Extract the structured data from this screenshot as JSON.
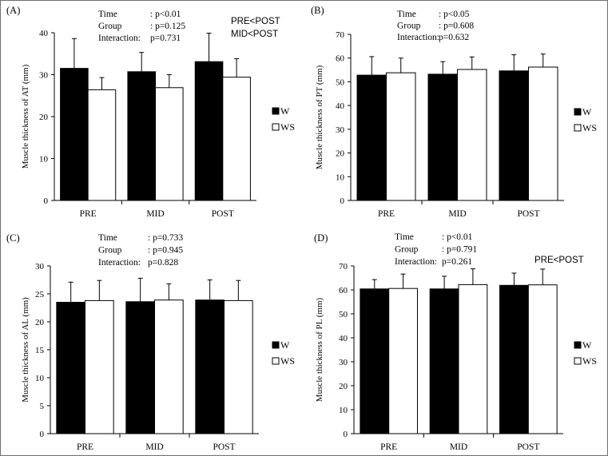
{
  "chart_data": [
    {
      "type": "bar",
      "panel_label": "(A)",
      "ylabel": "Muscle thickness of AT (mm)",
      "ylim": [
        0,
        40
      ],
      "yticks": [
        "0",
        "10",
        "20",
        "30",
        "40"
      ],
      "categories": [
        "PRE",
        "MID",
        "POST"
      ],
      "series": [
        {
          "name": "W",
          "color": "#000000",
          "values": [
            31.5,
            30.7,
            33.1
          ],
          "sd": [
            7.1,
            4.6,
            6.8
          ]
        },
        {
          "name": "WS",
          "color": "#ffffff",
          "values": [
            26.4,
            26.9,
            29.4
          ],
          "sd": [
            2.9,
            3.1,
            4.4
          ]
        }
      ],
      "stats": [
        {
          "label": "Time",
          "value": ": p<0.01"
        },
        {
          "label": "Group",
          "value": ": p=0.125"
        },
        {
          "label": "Interaction:",
          "value": "p=0.731"
        }
      ],
      "annotations": [
        "PRE<POST",
        "MID<POST"
      ],
      "legend_position": "right"
    },
    {
      "type": "bar",
      "panel_label": "(B)",
      "ylabel": "Muscle thickness of PT (mm)",
      "ylim": [
        0,
        70
      ],
      "yticks": [
        "0",
        "10",
        "20",
        "30",
        "40",
        "50",
        "60",
        "70"
      ],
      "categories": [
        "PRE",
        "MID",
        "POST"
      ],
      "series": [
        {
          "name": "W",
          "color": "#000000",
          "values": [
            52.8,
            53.2,
            54.6
          ],
          "sd": [
            7.8,
            5.3,
            6.8
          ]
        },
        {
          "name": "WS",
          "color": "#ffffff",
          "values": [
            53.8,
            55.2,
            56.2
          ],
          "sd": [
            6.2,
            5.3,
            5.5
          ]
        }
      ],
      "stats": [
        {
          "label": "Time",
          "value": ": p<0.05"
        },
        {
          "label": "Group",
          "value": ": p=0.608"
        },
        {
          "label": "Interaction:",
          "value": "p=0.632"
        }
      ],
      "annotations": [],
      "legend_position": "right"
    },
    {
      "type": "bar",
      "panel_label": "(C)",
      "ylabel": "Muscle thickness of AL (mm)",
      "ylim": [
        0,
        30
      ],
      "yticks": [
        "0",
        "5",
        "10",
        "15",
        "20",
        "25",
        "30"
      ],
      "categories": [
        "PRE",
        "MID",
        "POST"
      ],
      "series": [
        {
          "name": "W",
          "color": "#000000",
          "values": [
            23.5,
            23.6,
            23.9
          ],
          "sd": [
            3.6,
            4.2,
            3.6
          ]
        },
        {
          "name": "WS",
          "color": "#ffffff",
          "values": [
            23.8,
            23.9,
            23.8
          ],
          "sd": [
            3.6,
            2.9,
            3.6
          ]
        }
      ],
      "stats": [
        {
          "label": "Time",
          "value": ": p=0.733"
        },
        {
          "label": "Group",
          "value": ": p=0.945"
        },
        {
          "label": "Interaction:",
          "value": "p=0.828"
        }
      ],
      "annotations": [],
      "legend_position": "right"
    },
    {
      "type": "bar",
      "panel_label": "(D)",
      "ylabel": "Muscle thickness of PL (mm)",
      "ylim": [
        0,
        70
      ],
      "yticks": [
        "0",
        "10",
        "20",
        "30",
        "40",
        "50",
        "60",
        "70"
      ],
      "categories": [
        "PRE",
        "MID",
        "POST"
      ],
      "series": [
        {
          "name": "W",
          "color": "#000000",
          "values": [
            60.4,
            60.4,
            61.9
          ],
          "sd": [
            3.9,
            5.3,
            5.1
          ]
        },
        {
          "name": "WS",
          "color": "#ffffff",
          "values": [
            60.6,
            62.2,
            62.1
          ],
          "sd": [
            6.0,
            6.6,
            6.6
          ]
        }
      ],
      "stats": [
        {
          "label": "Time",
          "value": ": p<0.01"
        },
        {
          "label": "Group",
          "value": ": p=0.791"
        },
        {
          "label": "Interaction:",
          "value": "p=0.261"
        }
      ],
      "annotations": [
        "PRE<POST"
      ],
      "legend_position": "right"
    }
  ]
}
